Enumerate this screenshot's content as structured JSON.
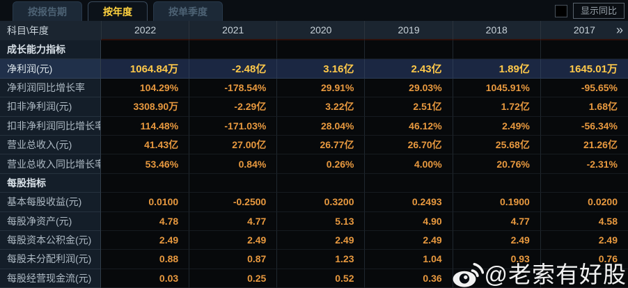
{
  "tabs": [
    {
      "name": "report-period",
      "label": "按报告期",
      "active": false
    },
    {
      "name": "by-year",
      "label": "按年度",
      "active": true
    },
    {
      "name": "by-quarter",
      "label": "按单季度",
      "active": false
    }
  ],
  "controls": {
    "show_yoy_label": "显示同比",
    "checkbox_checked": false
  },
  "table": {
    "corner_label": "科目\\年度",
    "years": [
      "2022",
      "2021",
      "2020",
      "2019",
      "2018",
      "2017"
    ],
    "more_icon": "»",
    "rows": [
      {
        "type": "section",
        "label": "成长能力指标",
        "values": [
          "",
          "",
          "",
          "",
          "",
          ""
        ]
      },
      {
        "type": "data",
        "label": "净利润(元)",
        "highlight": true,
        "values": [
          "1064.84万",
          "-2.48亿",
          "3.16亿",
          "2.43亿",
          "1.89亿",
          "1645.01万"
        ]
      },
      {
        "type": "data",
        "label": "净利润同比增长率",
        "values": [
          "104.29%",
          "-178.54%",
          "29.91%",
          "29.03%",
          "1045.91%",
          "-95.65%"
        ]
      },
      {
        "type": "data",
        "label": "扣非净利润(元)",
        "values": [
          "3308.90万",
          "-2.29亿",
          "3.22亿",
          "2.51亿",
          "1.72亿",
          "1.68亿"
        ]
      },
      {
        "type": "data",
        "label": "扣非净利润同比增长率",
        "values": [
          "114.48%",
          "-171.03%",
          "28.04%",
          "46.12%",
          "2.49%",
          "-56.34%"
        ]
      },
      {
        "type": "data",
        "label": "营业总收入(元)",
        "values": [
          "41.43亿",
          "27.00亿",
          "26.77亿",
          "26.70亿",
          "25.68亿",
          "21.26亿"
        ]
      },
      {
        "type": "data",
        "label": "营业总收入同比增长率",
        "values": [
          "53.46%",
          "0.84%",
          "0.26%",
          "4.00%",
          "20.76%",
          "-2.31%"
        ]
      },
      {
        "type": "section",
        "label": "每股指标",
        "values": [
          "",
          "",
          "",
          "",
          "",
          ""
        ]
      },
      {
        "type": "data",
        "label": "基本每股收益(元)",
        "values": [
          "0.0100",
          "-0.2500",
          "0.3200",
          "0.2493",
          "0.1900",
          "0.0200"
        ]
      },
      {
        "type": "data",
        "label": "每股净资产(元)",
        "values": [
          "4.78",
          "4.77",
          "5.13",
          "4.90",
          "4.77",
          "4.58"
        ]
      },
      {
        "type": "data",
        "label": "每股资本公积金(元)",
        "values": [
          "2.49",
          "2.49",
          "2.49",
          "2.49",
          "2.49",
          "2.49"
        ]
      },
      {
        "type": "data",
        "label": "每股未分配利润(元)",
        "values": [
          "0.88",
          "0.87",
          "1.23",
          "1.04",
          "0.93",
          "0.76"
        ]
      },
      {
        "type": "data",
        "label": "每股经营现金流(元)",
        "values": [
          "0.03",
          "0.25",
          "0.52",
          "0.36",
          "",
          ""
        ]
      }
    ]
  },
  "watermark": {
    "handle": "@老索有好股",
    "icon": "weibo-logo"
  },
  "colors": {
    "background": "#0a0e13",
    "tab_active_text": "#ffd23f",
    "tab_inactive_text": "#4d6274",
    "header_bg": "#1b2530",
    "label_column_bg": "#141e29",
    "value_cell_bg": "#07090b",
    "value_orange": "#e8993f",
    "highlight_row_bg": "#1b2742",
    "highlight_value_yellow": "#ffc94a",
    "watermark_white": "#ffffff"
  }
}
